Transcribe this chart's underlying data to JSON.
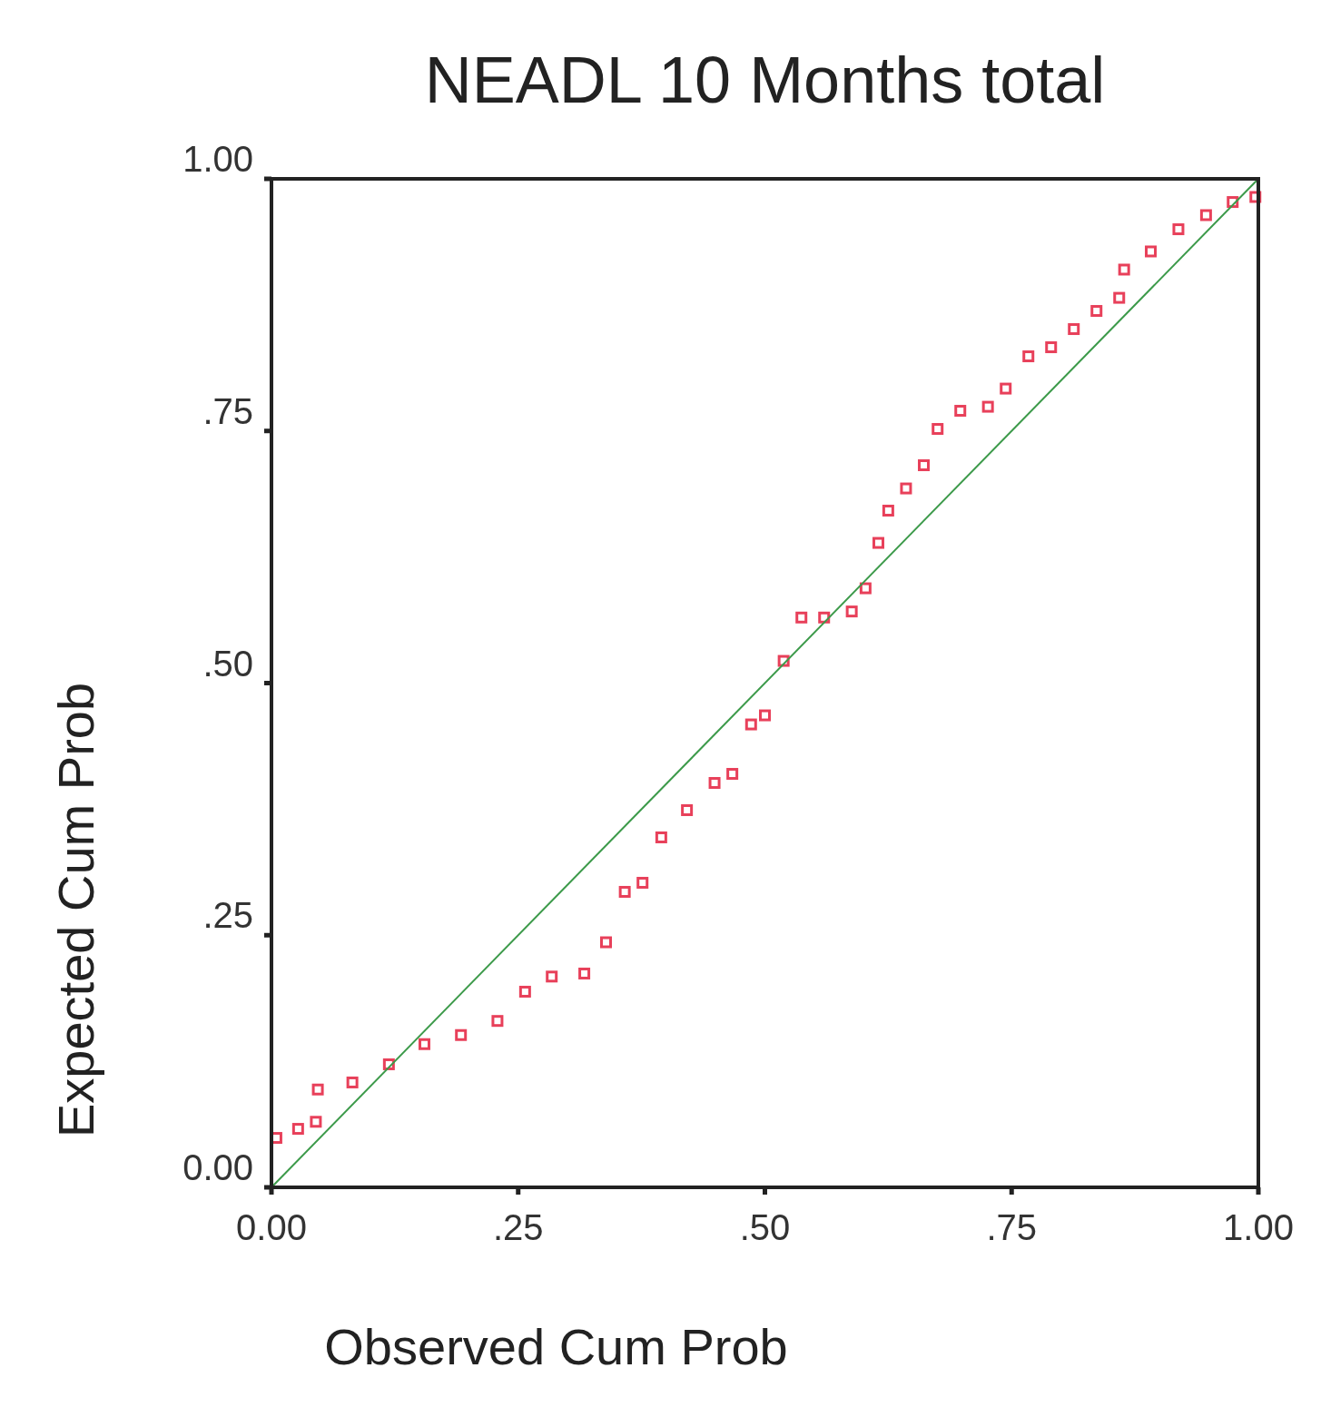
{
  "chart_data": {
    "type": "scatter",
    "title": "NEADL 10 Months total",
    "xlabel": "Observed Cum Prob",
    "ylabel": "Expected Cum Prob",
    "xlim": [
      0,
      1
    ],
    "ylim": [
      0,
      1
    ],
    "xticks": [
      {
        "value": 0,
        "label": "0.00"
      },
      {
        "value": 0.25,
        "label": ".25"
      },
      {
        "value": 0.5,
        "label": ".50"
      },
      {
        "value": 0.75,
        "label": ".75"
      },
      {
        "value": 1,
        "label": "1.00"
      }
    ],
    "yticks": [
      {
        "value": 0,
        "label": "0.00"
      },
      {
        "value": 0.25,
        "label": ".25"
      },
      {
        "value": 0.5,
        "label": ".50"
      },
      {
        "value": 0.75,
        "label": ".75"
      },
      {
        "value": 1,
        "label": "1.00"
      }
    ],
    "grid": false,
    "series": [
      {
        "marker": "square",
        "color": "#e8405a",
        "x": [
          0.005,
          0.027,
          0.045,
          0.047,
          0.082,
          0.119,
          0.155,
          0.192,
          0.229,
          0.257,
          0.284,
          0.317,
          0.339,
          0.358,
          0.376,
          0.395,
          0.421,
          0.449,
          0.467,
          0.486,
          0.5,
          0.519,
          0.537,
          0.56,
          0.588,
          0.602,
          0.615,
          0.625,
          0.643,
          0.661,
          0.675,
          0.698,
          0.726,
          0.744,
          0.767,
          0.79,
          0.813,
          0.836,
          0.859,
          0.864,
          0.891,
          0.919,
          0.947,
          0.974,
          0.997
        ],
        "values": [
          0.049,
          0.058,
          0.065,
          0.097,
          0.104,
          0.122,
          0.142,
          0.151,
          0.165,
          0.194,
          0.209,
          0.212,
          0.243,
          0.293,
          0.302,
          0.347,
          0.374,
          0.401,
          0.41,
          0.459,
          0.468,
          0.522,
          0.565,
          0.565,
          0.571,
          0.594,
          0.639,
          0.671,
          0.693,
          0.716,
          0.752,
          0.77,
          0.774,
          0.792,
          0.824,
          0.833,
          0.851,
          0.869,
          0.882,
          0.91,
          0.928,
          0.95,
          0.964,
          0.977,
          0.982
        ]
      },
      {
        "type": "line",
        "color": "#3c9a4a",
        "x": [
          0,
          1
        ],
        "values": [
          0,
          1
        ]
      }
    ]
  }
}
